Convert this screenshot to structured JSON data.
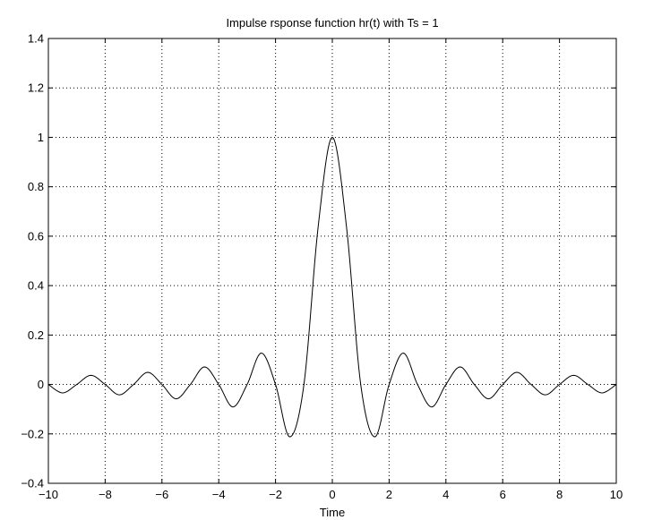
{
  "chart_data": {
    "type": "line",
    "title": "Impulse rsponse function hr(t) with Ts = 1",
    "xlabel": "Time",
    "ylabel": "",
    "xlim": [
      -10,
      10
    ],
    "ylim": [
      -0.4,
      1.4
    ],
    "xticks": [
      -10,
      -8,
      -6,
      -4,
      -2,
      0,
      2,
      4,
      6,
      8,
      10
    ],
    "xtick_labels": [
      "−10",
      "−8",
      "−6",
      "−4",
      "−2",
      "0",
      "2",
      "4",
      "6",
      "8",
      "10"
    ],
    "yticks": [
      -0.4,
      -0.2,
      0,
      0.2,
      0.4,
      0.6,
      0.8,
      1,
      1.2,
      1.4
    ],
    "ytick_labels": [
      "−0.4",
      "−0.2",
      "0",
      "0.2",
      "0.4",
      "0.6",
      "0.8",
      "1",
      "1.2",
      "1.4"
    ],
    "grid": true,
    "series": [
      {
        "color": "#000000",
        "points": [
          [
            -10,
            -0.0
          ],
          [
            -9.5,
            -0.034
          ],
          [
            -9.0,
            0.0
          ],
          [
            -8.5,
            0.037
          ],
          [
            -8.0,
            0.0
          ],
          [
            -7.5,
            -0.042
          ],
          [
            -7.0,
            0.0
          ],
          [
            -6.5,
            0.049
          ],
          [
            -6.0,
            0.0
          ],
          [
            -5.5,
            -0.058
          ],
          [
            -5.0,
            0.0
          ],
          [
            -4.5,
            0.071
          ],
          [
            -4.0,
            0.0
          ],
          [
            -3.5,
            -0.091
          ],
          [
            -3.0,
            0.0
          ],
          [
            -2.5,
            0.127
          ],
          [
            -2.0,
            0.0
          ],
          [
            -1.5,
            -0.212
          ],
          [
            -1.0,
            0.0
          ],
          [
            -0.5,
            0.637
          ],
          [
            0,
            1.0
          ],
          [
            0.5,
            0.637
          ],
          [
            1.0,
            0.0
          ],
          [
            1.5,
            -0.212
          ],
          [
            2.0,
            0.0
          ],
          [
            2.5,
            0.127
          ],
          [
            3.0,
            0.0
          ],
          [
            3.5,
            -0.091
          ],
          [
            4.0,
            0.0
          ],
          [
            4.5,
            0.071
          ],
          [
            5.0,
            0.0
          ],
          [
            5.5,
            -0.058
          ],
          [
            6.0,
            0.0
          ],
          [
            6.5,
            0.049
          ],
          [
            7.0,
            0.0
          ],
          [
            7.5,
            -0.042
          ],
          [
            8.0,
            0.0
          ],
          [
            8.5,
            0.037
          ],
          [
            9.0,
            0.0
          ],
          [
            9.5,
            -0.034
          ],
          [
            10,
            0.0
          ]
        ]
      }
    ]
  }
}
